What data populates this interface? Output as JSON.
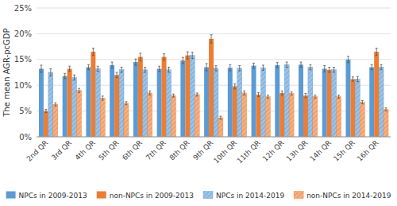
{
  "chart_data": {
    "type": "bar",
    "ylabel": "The mean AGR-pcGDP",
    "categories": [
      "2nd QR",
      "3rd QR",
      "4th QR",
      "5th QR",
      "6th QR",
      "7th QR",
      "8th QR",
      "9th QR",
      "10th QR",
      "11th QR",
      "12h QR",
      "13h QR",
      "14h QR",
      "15h QR",
      "16h QR"
    ],
    "series": [
      {
        "name": "NPCs in 2009-2013",
        "color": "#5b9bd5",
        "values": [
          13.2,
          11.8,
          13.5,
          13.9,
          14.5,
          13.2,
          14.8,
          13.5,
          13.4,
          13.8,
          13.9,
          14.0,
          13.2,
          15.0,
          13.5
        ],
        "errors": [
          0.7,
          0.5,
          0.5,
          0.6,
          0.6,
          0.5,
          0.6,
          0.7,
          0.6,
          0.5,
          0.5,
          0.5,
          0.6,
          0.6,
          0.5
        ]
      },
      {
        "name": "non-NPCs in 2009-2013",
        "color": "#ed7d31",
        "values": [
          5.0,
          13.2,
          16.5,
          12.0,
          15.5,
          15.5,
          15.8,
          19.0,
          9.8,
          8.2,
          8.5,
          8.0,
          13.0,
          11.2,
          16.5
        ],
        "errors": [
          0.3,
          0.5,
          0.7,
          0.5,
          0.7,
          0.6,
          0.7,
          0.8,
          0.5,
          0.4,
          0.4,
          0.4,
          0.5,
          0.4,
          0.7
        ]
      },
      {
        "name": "NPCs in 2014-2019",
        "color": "#9dc3e6",
        "values": [
          12.5,
          11.5,
          13.2,
          13.0,
          13.0,
          13.0,
          15.8,
          13.3,
          13.3,
          13.4,
          14.0,
          13.5,
          13.0,
          11.2,
          13.5
        ],
        "errors": [
          0.7,
          0.5,
          0.5,
          0.5,
          0.5,
          0.5,
          0.6,
          0.5,
          0.5,
          0.5,
          0.5,
          0.5,
          0.5,
          0.5,
          0.5
        ]
      },
      {
        "name": "non-NPCs in 2014-2019",
        "color": "#f4b183",
        "values": [
          6.3,
          9.0,
          7.5,
          6.5,
          8.5,
          8.0,
          8.2,
          3.7,
          8.5,
          7.8,
          8.4,
          7.8,
          7.8,
          6.7,
          5.3
        ],
        "errors": [
          0.3,
          0.4,
          0.4,
          0.3,
          0.4,
          0.3,
          0.3,
          0.3,
          0.4,
          0.3,
          0.3,
          0.3,
          0.3,
          0.3,
          0.3
        ]
      }
    ],
    "ylim": [
      0,
      25
    ],
    "yticks": [
      {
        "value": 0,
        "label": "0%"
      },
      {
        "value": 5,
        "label": "5%"
      },
      {
        "value": 10,
        "label": "10%"
      },
      {
        "value": 15,
        "label": "15%"
      },
      {
        "value": 20,
        "label": "20%"
      },
      {
        "value": 25,
        "label": "25%"
      }
    ],
    "grid": true,
    "legend": "bottom"
  }
}
